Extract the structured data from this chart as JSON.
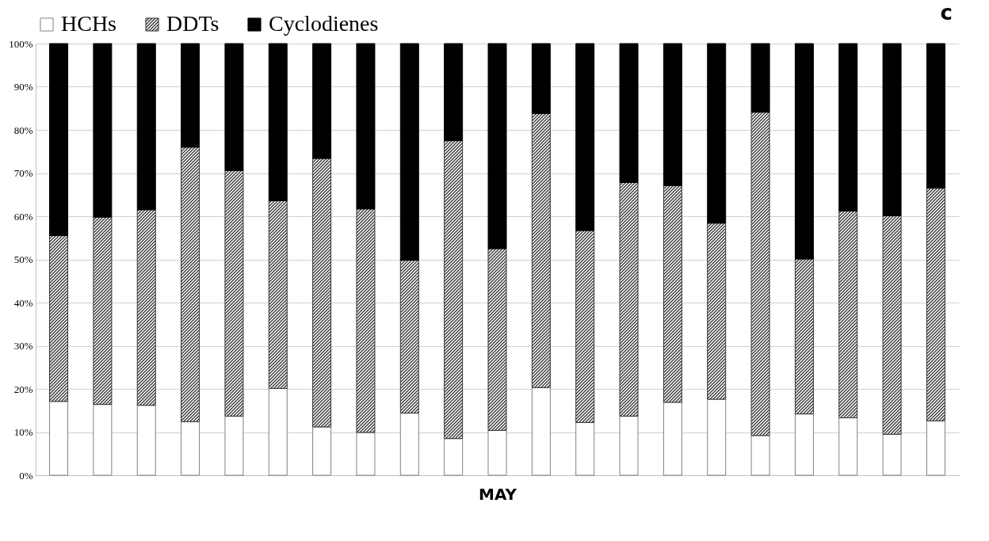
{
  "chart_data": {
    "type": "bar",
    "stacked": true,
    "xlabel": "MAY",
    "annotations": [
      "c"
    ],
    "categories": [
      null,
      null,
      null,
      null,
      null,
      null,
      null,
      null,
      null,
      null,
      null,
      null,
      null,
      null,
      null,
      null,
      null,
      null,
      null,
      null,
      null
    ],
    "series": [
      {
        "name": "HCHs",
        "color": "#ffffff",
        "values": [
          17.1,
          16.4,
          16.2,
          12.4,
          13.7,
          20.1,
          11.2,
          9.9,
          14.4,
          8.5,
          10.4,
          20.3,
          12.2,
          13.7,
          16.9,
          17.6,
          9.2,
          14.2,
          13.3,
          9.5,
          12.6
        ]
      },
      {
        "name": "DDTs",
        "color": "#333333",
        "values": [
          38.4,
          43.4,
          45.3,
          63.6,
          56.9,
          43.5,
          62.2,
          51.8,
          35.4,
          69.0,
          42.1,
          63.5,
          44.5,
          54.1,
          50.2,
          40.8,
          74.9,
          35.9,
          47.9,
          50.6,
          53.9
        ]
      },
      {
        "name": "Cyclodienes",
        "color": "#000000",
        "values": [
          44.5,
          40.2,
          38.5,
          24.0,
          29.4,
          36.4,
          26.6,
          38.3,
          50.2,
          22.5,
          47.5,
          16.2,
          43.3,
          32.2,
          32.9,
          41.6,
          15.9,
          49.9,
          38.8,
          39.9,
          33.5
        ]
      }
    ],
    "ylim": [
      0,
      100
    ],
    "yticks": [
      {
        "value": 0,
        "label": "0%"
      },
      {
        "value": 10,
        "label": "10%"
      },
      {
        "value": 20,
        "label": "20%"
      },
      {
        "value": 30,
        "label": "30%"
      },
      {
        "value": 40,
        "label": "40%"
      },
      {
        "value": 50,
        "label": "50%"
      },
      {
        "value": 60,
        "label": "60%"
      },
      {
        "value": 70,
        "label": "70%"
      },
      {
        "value": 80,
        "label": "80%"
      },
      {
        "value": 90,
        "label": "90%"
      },
      {
        "value": 100,
        "label": "100%"
      }
    ],
    "grid": "y",
    "legend": "top"
  }
}
